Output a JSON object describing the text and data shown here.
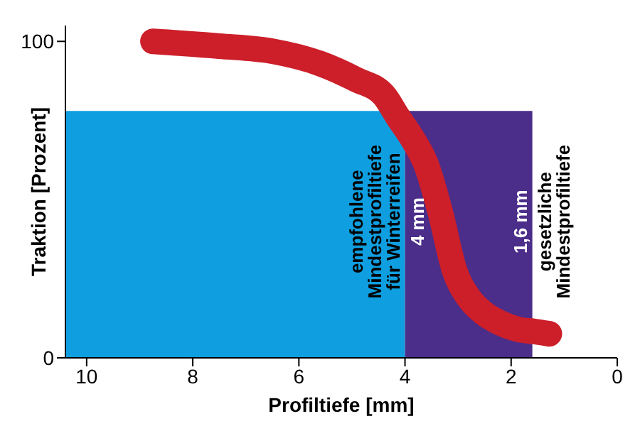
{
  "chart_data": {
    "type": "line",
    "xlabel": "Profiltiefe [mm]",
    "ylabel": "Traktion [Prozent]",
    "xlim": [
      10.4,
      0
    ],
    "xticks": [
      10,
      8,
      6,
      4,
      2,
      0
    ],
    "ylim": [
      0,
      105
    ],
    "yticks": [
      0,
      100
    ],
    "grid": false,
    "marker": "none",
    "series": [
      {
        "type": "area",
        "color": "#0f9fe0",
        "x": [
          10.4,
          4
        ],
        "values": [
          78,
          78
        ]
      },
      {
        "type": "area",
        "color": "#4b2d8a",
        "x": [
          4,
          1.6
        ],
        "values": [
          78,
          78
        ]
      },
      {
        "color": "#cc1f2a",
        "x": [
          8.75,
          7.5,
          6.5,
          5.6,
          4.93,
          4.4,
          4.13,
          3.85,
          3.6,
          3.33,
          3.07,
          2.8,
          2.53,
          2.2,
          1.87,
          1.55,
          1.28
        ],
        "values": [
          100,
          98.5,
          96.9,
          93,
          88,
          83,
          76,
          69,
          61,
          45.7,
          27.8,
          19,
          14.3,
          11,
          9,
          8.3,
          7.6
        ]
      }
    ],
    "annotations": [
      "empfohlene\nMindestprofiltiefe\nfür Winterreifen",
      "4 mm",
      "1,6 mm",
      "gesetzliche\nMindestprofiltiefe"
    ]
  }
}
